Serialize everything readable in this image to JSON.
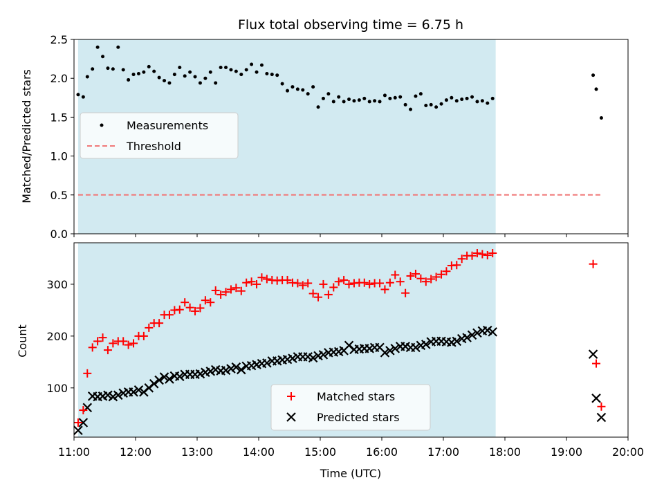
{
  "chart_data": [
    {
      "type": "scatter",
      "title": "Flux total observing time = 6.75 h",
      "xlabel": "",
      "ylabel": "Matched/Predicted stars",
      "xlim": [
        "11:00",
        "20:00"
      ],
      "ylim": [
        0,
        2.5
      ],
      "yticks": [
        "0.0",
        "0.5",
        "1.0",
        "1.5",
        "2.0",
        "2.5"
      ],
      "shaded_span": [
        "11:04",
        "17:51"
      ],
      "shade_color": "#add8e6",
      "legend_position": "center-left",
      "series": [
        {
          "name": "Measurements",
          "marker": "dot",
          "color": "#000000",
          "x": [
            "11:04",
            "11:09",
            "11:13",
            "11:18",
            "11:23",
            "11:28",
            "11:33",
            "11:38",
            "11:43",
            "11:48",
            "11:53",
            "11:58",
            "12:03",
            "12:08",
            "12:13",
            "12:18",
            "12:23",
            "12:28",
            "12:33",
            "12:38",
            "12:43",
            "12:48",
            "12:53",
            "12:58",
            "13:03",
            "13:08",
            "13:13",
            "13:18",
            "13:23",
            "13:28",
            "13:33",
            "13:38",
            "13:43",
            "13:48",
            "13:53",
            "13:58",
            "14:03",
            "14:08",
            "14:13",
            "14:18",
            "14:23",
            "14:28",
            "14:33",
            "14:38",
            "14:43",
            "14:48",
            "14:53",
            "14:58",
            "15:03",
            "15:08",
            "15:13",
            "15:18",
            "15:23",
            "15:28",
            "15:33",
            "15:38",
            "15:43",
            "15:48",
            "15:53",
            "15:58",
            "16:03",
            "16:08",
            "16:13",
            "16:18",
            "16:23",
            "16:28",
            "16:33",
            "16:38",
            "16:43",
            "16:48",
            "16:53",
            "16:58",
            "17:03",
            "17:08",
            "17:13",
            "17:18",
            "17:23",
            "17:28",
            "17:33",
            "17:38",
            "17:43",
            "17:48",
            "19:26",
            "19:29",
            "19:34"
          ],
          "y": [
            1.79,
            1.76,
            2.02,
            2.12,
            2.4,
            2.28,
            2.13,
            2.12,
            2.4,
            2.11,
            1.98,
            2.05,
            2.06,
            2.08,
            2.15,
            2.09,
            2.01,
            1.97,
            1.94,
            2.05,
            2.14,
            2.03,
            2.08,
            2.02,
            1.94,
            2.0,
            2.08,
            1.94,
            2.14,
            2.14,
            2.11,
            2.09,
            2.05,
            2.11,
            2.18,
            2.08,
            2.17,
            2.06,
            2.05,
            2.04,
            1.93,
            1.84,
            1.89,
            1.86,
            1.85,
            1.8,
            1.89,
            1.63,
            1.74,
            1.8,
            1.7,
            1.76,
            1.7,
            1.73,
            1.71,
            1.72,
            1.74,
            1.7,
            1.71,
            1.7,
            1.78,
            1.74,
            1.75,
            1.76,
            1.66,
            1.6,
            1.77,
            1.8,
            1.65,
            1.66,
            1.63,
            1.67,
            1.72,
            1.75,
            1.71,
            1.73,
            1.74,
            1.76,
            1.7,
            1.71,
            1.68,
            1.74,
            2.04,
            1.86,
            1.49
          ]
        },
        {
          "name": "Threshold",
          "marker": "dashed-line",
          "color": "#f07878",
          "x": [
            "11:04",
            "19:34"
          ],
          "y": [
            0.5,
            0.5
          ]
        }
      ]
    },
    {
      "type": "scatter",
      "title": "",
      "xlabel": "Time (UTC)",
      "ylabel": "Count",
      "xlim": [
        "11:00",
        "20:00"
      ],
      "ylim": [
        5,
        380
      ],
      "yticks": [
        "100",
        "200",
        "300"
      ],
      "xticks": [
        "11:00",
        "12:00",
        "13:00",
        "14:00",
        "15:00",
        "16:00",
        "17:00",
        "18:00",
        "19:00",
        "20:00"
      ],
      "shaded_span": [
        "11:04",
        "17:51"
      ],
      "shade_color": "#add8e6",
      "legend_position": "lower-center",
      "series": [
        {
          "name": "Matched stars",
          "marker": "plus",
          "color": "#ff0000",
          "x": [
            "11:04",
            "11:09",
            "11:13",
            "11:18",
            "11:23",
            "11:28",
            "11:33",
            "11:38",
            "11:43",
            "11:48",
            "11:53",
            "11:58",
            "12:03",
            "12:08",
            "12:13",
            "12:18",
            "12:23",
            "12:28",
            "12:33",
            "12:38",
            "12:43",
            "12:48",
            "12:53",
            "12:58",
            "13:03",
            "13:08",
            "13:13",
            "13:18",
            "13:23",
            "13:28",
            "13:33",
            "13:38",
            "13:43",
            "13:48",
            "13:53",
            "13:58",
            "14:03",
            "14:08",
            "14:13",
            "14:18",
            "14:23",
            "14:28",
            "14:33",
            "14:38",
            "14:43",
            "14:48",
            "14:53",
            "14:58",
            "15:03",
            "15:08",
            "15:13",
            "15:18",
            "15:23",
            "15:28",
            "15:33",
            "15:38",
            "15:43",
            "15:48",
            "15:53",
            "15:58",
            "16:03",
            "16:08",
            "16:13",
            "16:18",
            "16:23",
            "16:28",
            "16:33",
            "16:38",
            "16:43",
            "16:48",
            "16:53",
            "16:58",
            "17:03",
            "17:08",
            "17:13",
            "17:18",
            "17:23",
            "17:28",
            "17:33",
            "17:38",
            "17:43",
            "17:48",
            "19:26",
            "19:29",
            "19:34"
          ],
          "y": [
            33,
            57,
            128,
            178,
            190,
            197,
            173,
            186,
            190,
            190,
            183,
            186,
            200,
            200,
            216,
            225,
            225,
            241,
            241,
            250,
            251,
            265,
            255,
            248,
            254,
            269,
            265,
            288,
            280,
            285,
            290,
            293,
            287,
            303,
            305,
            300,
            313,
            310,
            308,
            307,
            308,
            308,
            303,
            302,
            298,
            302,
            282,
            275,
            300,
            280,
            294,
            305,
            308,
            300,
            302,
            303,
            303,
            300,
            302,
            302,
            290,
            303,
            318,
            305,
            283,
            316,
            320,
            311,
            305,
            310,
            314,
            319,
            325,
            336,
            337,
            349,
            355,
            355,
            360,
            358,
            356,
            360,
            339,
            147,
            64
          ]
        },
        {
          "name": "Predicted stars",
          "marker": "x",
          "color": "#000000",
          "x": [
            "11:04",
            "11:09",
            "11:13",
            "11:18",
            "11:23",
            "11:28",
            "11:33",
            "11:38",
            "11:43",
            "11:48",
            "11:53",
            "11:58",
            "12:03",
            "12:08",
            "12:13",
            "12:18",
            "12:23",
            "12:28",
            "12:33",
            "12:38",
            "12:43",
            "12:48",
            "12:53",
            "12:58",
            "13:03",
            "13:08",
            "13:13",
            "13:18",
            "13:23",
            "13:28",
            "13:33",
            "13:38",
            "13:43",
            "13:48",
            "13:53",
            "13:58",
            "14:03",
            "14:08",
            "14:13",
            "14:18",
            "14:23",
            "14:28",
            "14:33",
            "14:38",
            "14:43",
            "14:48",
            "14:53",
            "14:58",
            "15:03",
            "15:08",
            "15:13",
            "15:18",
            "15:23",
            "15:28",
            "15:33",
            "15:38",
            "15:43",
            "15:48",
            "15:53",
            "15:58",
            "16:03",
            "16:08",
            "16:13",
            "16:18",
            "16:23",
            "16:28",
            "16:33",
            "16:38",
            "16:43",
            "16:48",
            "16:53",
            "16:58",
            "17:03",
            "17:08",
            "17:13",
            "17:18",
            "17:23",
            "17:28",
            "17:33",
            "17:38",
            "17:43",
            "17:48",
            "19:26",
            "19:29",
            "19:34"
          ],
          "y": [
            18,
            33,
            62,
            84,
            83,
            84,
            86,
            83,
            86,
            90,
            92,
            92,
            96,
            92,
            100,
            108,
            115,
            121,
            117,
            123,
            122,
            126,
            126,
            126,
            127,
            130,
            132,
            135,
            133,
            134,
            137,
            140,
            135,
            142,
            143,
            145,
            147,
            148,
            152,
            152,
            154,
            155,
            157,
            160,
            160,
            160,
            158,
            162,
            164,
            168,
            169,
            170,
            172,
            182,
            174,
            175,
            176,
            176,
            178,
            178,
            168,
            172,
            176,
            180,
            180,
            178,
            178,
            182,
            184,
            189,
            190,
            190,
            189,
            188,
            190,
            195,
            197,
            202,
            206,
            210,
            211,
            208,
            165,
            80,
            43
          ]
        }
      ]
    }
  ]
}
